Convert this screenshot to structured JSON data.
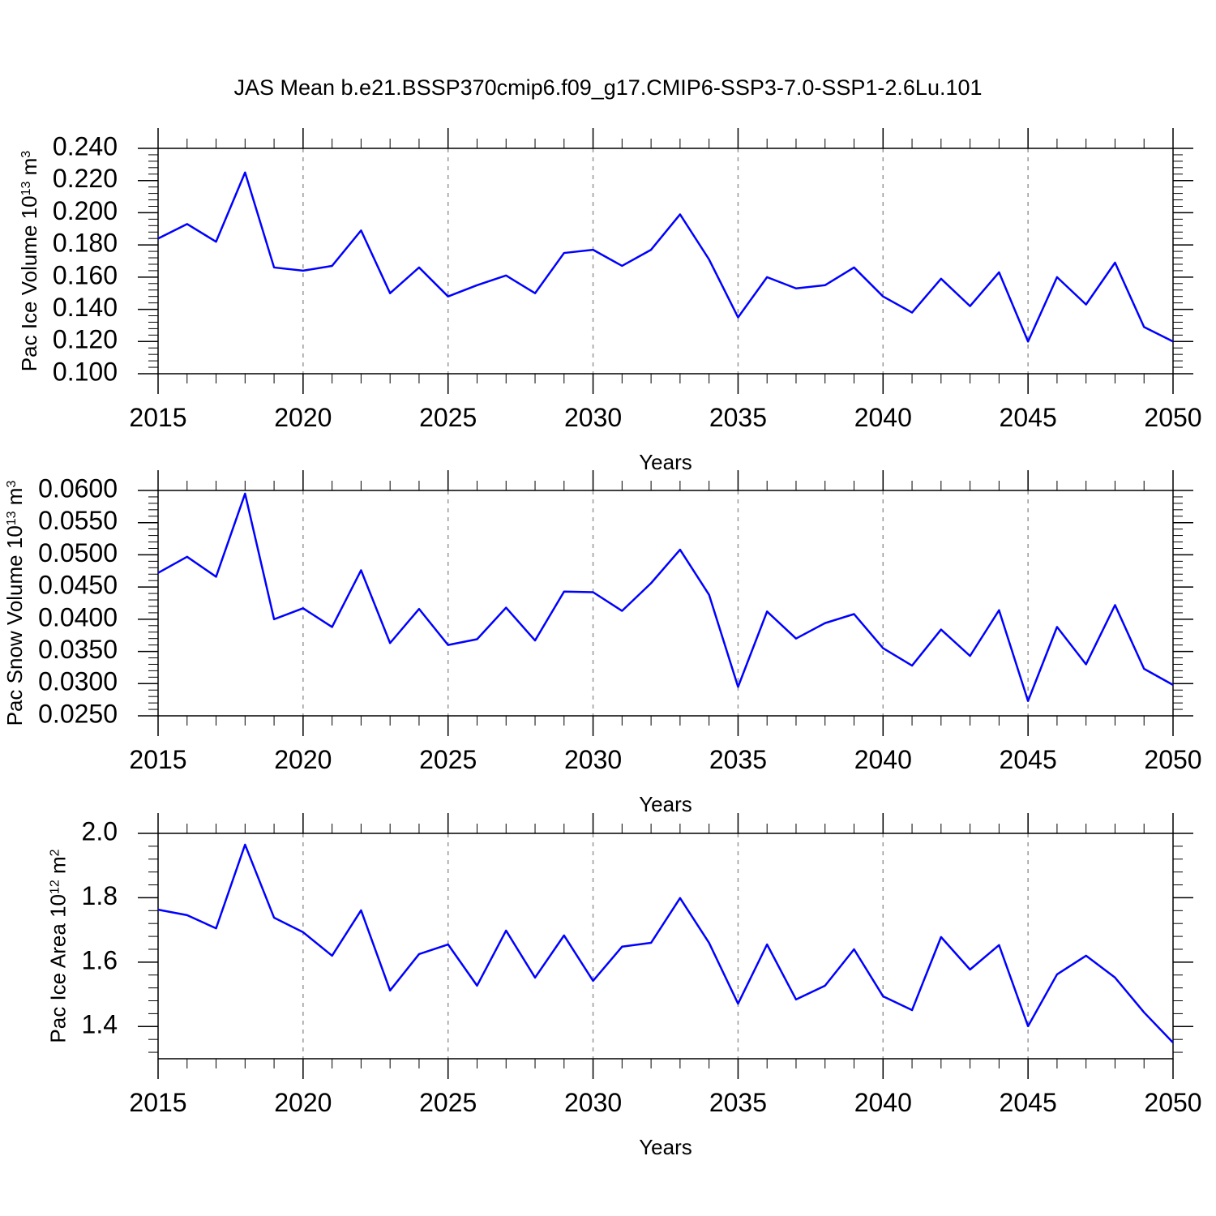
{
  "chart_data": [
    {
      "type": "line",
      "title": "JAS Mean b.e21.BSSP370cmip6.f09_g17.CMIP6-SSP3-7.0-SSP1-2.6Lu.101",
      "y_label": [
        "Pac Ice Volume 10",
        "13",
        " m",
        "3"
      ],
      "x_label": "Years",
      "x": [
        2015,
        2016,
        2017,
        2018,
        2019,
        2020,
        2021,
        2022,
        2023,
        2024,
        2025,
        2026,
        2027,
        2028,
        2029,
        2030,
        2031,
        2032,
        2033,
        2034,
        2035,
        2036,
        2037,
        2038,
        2039,
        2040,
        2041,
        2042,
        2043,
        2044,
        2045,
        2046,
        2047,
        2048,
        2049,
        2050
      ],
      "values": [
        0.184,
        0.193,
        0.182,
        0.225,
        0.166,
        0.164,
        0.167,
        0.189,
        0.15,
        0.166,
        0.148,
        0.155,
        0.161,
        0.15,
        0.175,
        0.177,
        0.167,
        0.177,
        0.199,
        0.171,
        0.135,
        0.16,
        0.153,
        0.155,
        0.166,
        0.148,
        0.138,
        0.159,
        0.142,
        0.163,
        0.12,
        0.16,
        0.143,
        0.169,
        0.129,
        0.12
      ],
      "color": "#0000ff",
      "xlim": [
        2015,
        2050
      ],
      "xticks": [
        2015,
        2020,
        2025,
        2030,
        2035,
        2040,
        2045,
        2050
      ],
      "ylim": [
        0.1,
        0.24
      ],
      "yticks": [
        {
          "value": 0.1,
          "label": "0.100"
        },
        {
          "value": 0.12,
          "label": "0.120"
        },
        {
          "value": 0.14,
          "label": "0.140"
        },
        {
          "value": 0.16,
          "label": "0.160"
        },
        {
          "value": 0.18,
          "label": "0.180"
        },
        {
          "value": 0.2,
          "label": "0.200"
        },
        {
          "value": 0.22,
          "label": "0.220"
        },
        {
          "value": 0.24,
          "label": "0.240"
        }
      ],
      "grid": "x"
    },
    {
      "type": "line",
      "y_label": [
        "Pac Snow Volume 10",
        "13",
        " m",
        "3"
      ],
      "x_label": "Years",
      "x": [
        2015,
        2016,
        2017,
        2018,
        2019,
        2020,
        2021,
        2022,
        2023,
        2024,
        2025,
        2026,
        2027,
        2028,
        2029,
        2030,
        2031,
        2032,
        2033,
        2034,
        2035,
        2036,
        2037,
        2038,
        2039,
        2040,
        2041,
        2042,
        2043,
        2044,
        2045,
        2046,
        2047,
        2048,
        2049,
        2050
      ],
      "values": [
        0.0472,
        0.0497,
        0.0466,
        0.0595,
        0.04,
        0.0417,
        0.0388,
        0.0476,
        0.0363,
        0.0416,
        0.036,
        0.0369,
        0.0418,
        0.0367,
        0.0443,
        0.0442,
        0.0413,
        0.0456,
        0.0508,
        0.0438,
        0.0295,
        0.0412,
        0.037,
        0.0394,
        0.0408,
        0.0355,
        0.0328,
        0.0384,
        0.0343,
        0.0414,
        0.0273,
        0.0388,
        0.033,
        0.0422,
        0.0323,
        0.0298
      ],
      "color": "#0000ff",
      "xlim": [
        2015,
        2050
      ],
      "xticks": [
        2015,
        2020,
        2025,
        2030,
        2035,
        2040,
        2045,
        2050
      ],
      "ylim": [
        0.025,
        0.06
      ],
      "yticks": [
        {
          "value": 0.025,
          "label": "0.0250"
        },
        {
          "value": 0.03,
          "label": "0.0300"
        },
        {
          "value": 0.035,
          "label": "0.0350"
        },
        {
          "value": 0.04,
          "label": "0.0400"
        },
        {
          "value": 0.045,
          "label": "0.0450"
        },
        {
          "value": 0.05,
          "label": "0.0500"
        },
        {
          "value": 0.055,
          "label": "0.0550"
        },
        {
          "value": 0.06,
          "label": "0.0600"
        }
      ],
      "grid": "x"
    },
    {
      "type": "line",
      "y_label": [
        "Pac Ice Area 10",
        "12",
        " m",
        "2"
      ],
      "x_label": "Years",
      "x": [
        2015,
        2016,
        2017,
        2018,
        2019,
        2020,
        2021,
        2022,
        2023,
        2024,
        2025,
        2026,
        2027,
        2028,
        2029,
        2030,
        2031,
        2032,
        2033,
        2034,
        2035,
        2036,
        2037,
        2038,
        2039,
        2040,
        2041,
        2042,
        2043,
        2044,
        2045,
        2046,
        2047,
        2048,
        2049,
        2050
      ],
      "values": [
        1.763,
        1.746,
        1.705,
        1.965,
        1.738,
        1.693,
        1.62,
        1.761,
        1.512,
        1.625,
        1.655,
        1.527,
        1.698,
        1.552,
        1.683,
        1.542,
        1.648,
        1.66,
        1.799,
        1.66,
        1.471,
        1.655,
        1.484,
        1.527,
        1.64,
        1.494,
        1.451,
        1.678,
        1.577,
        1.653,
        1.401,
        1.562,
        1.62,
        1.552,
        1.444,
        1.35
      ],
      "color": "#0000ff",
      "xlim": [
        2015,
        2050
      ],
      "xticks": [
        2015,
        2020,
        2025,
        2030,
        2035,
        2040,
        2045,
        2050
      ],
      "ylim": [
        1.3,
        2.0
      ],
      "yticks": [
        1.4,
        1.6,
        1.8,
        {
          "value": 2.0,
          "label": "2.0"
        }
      ],
      "grid": "x"
    }
  ]
}
